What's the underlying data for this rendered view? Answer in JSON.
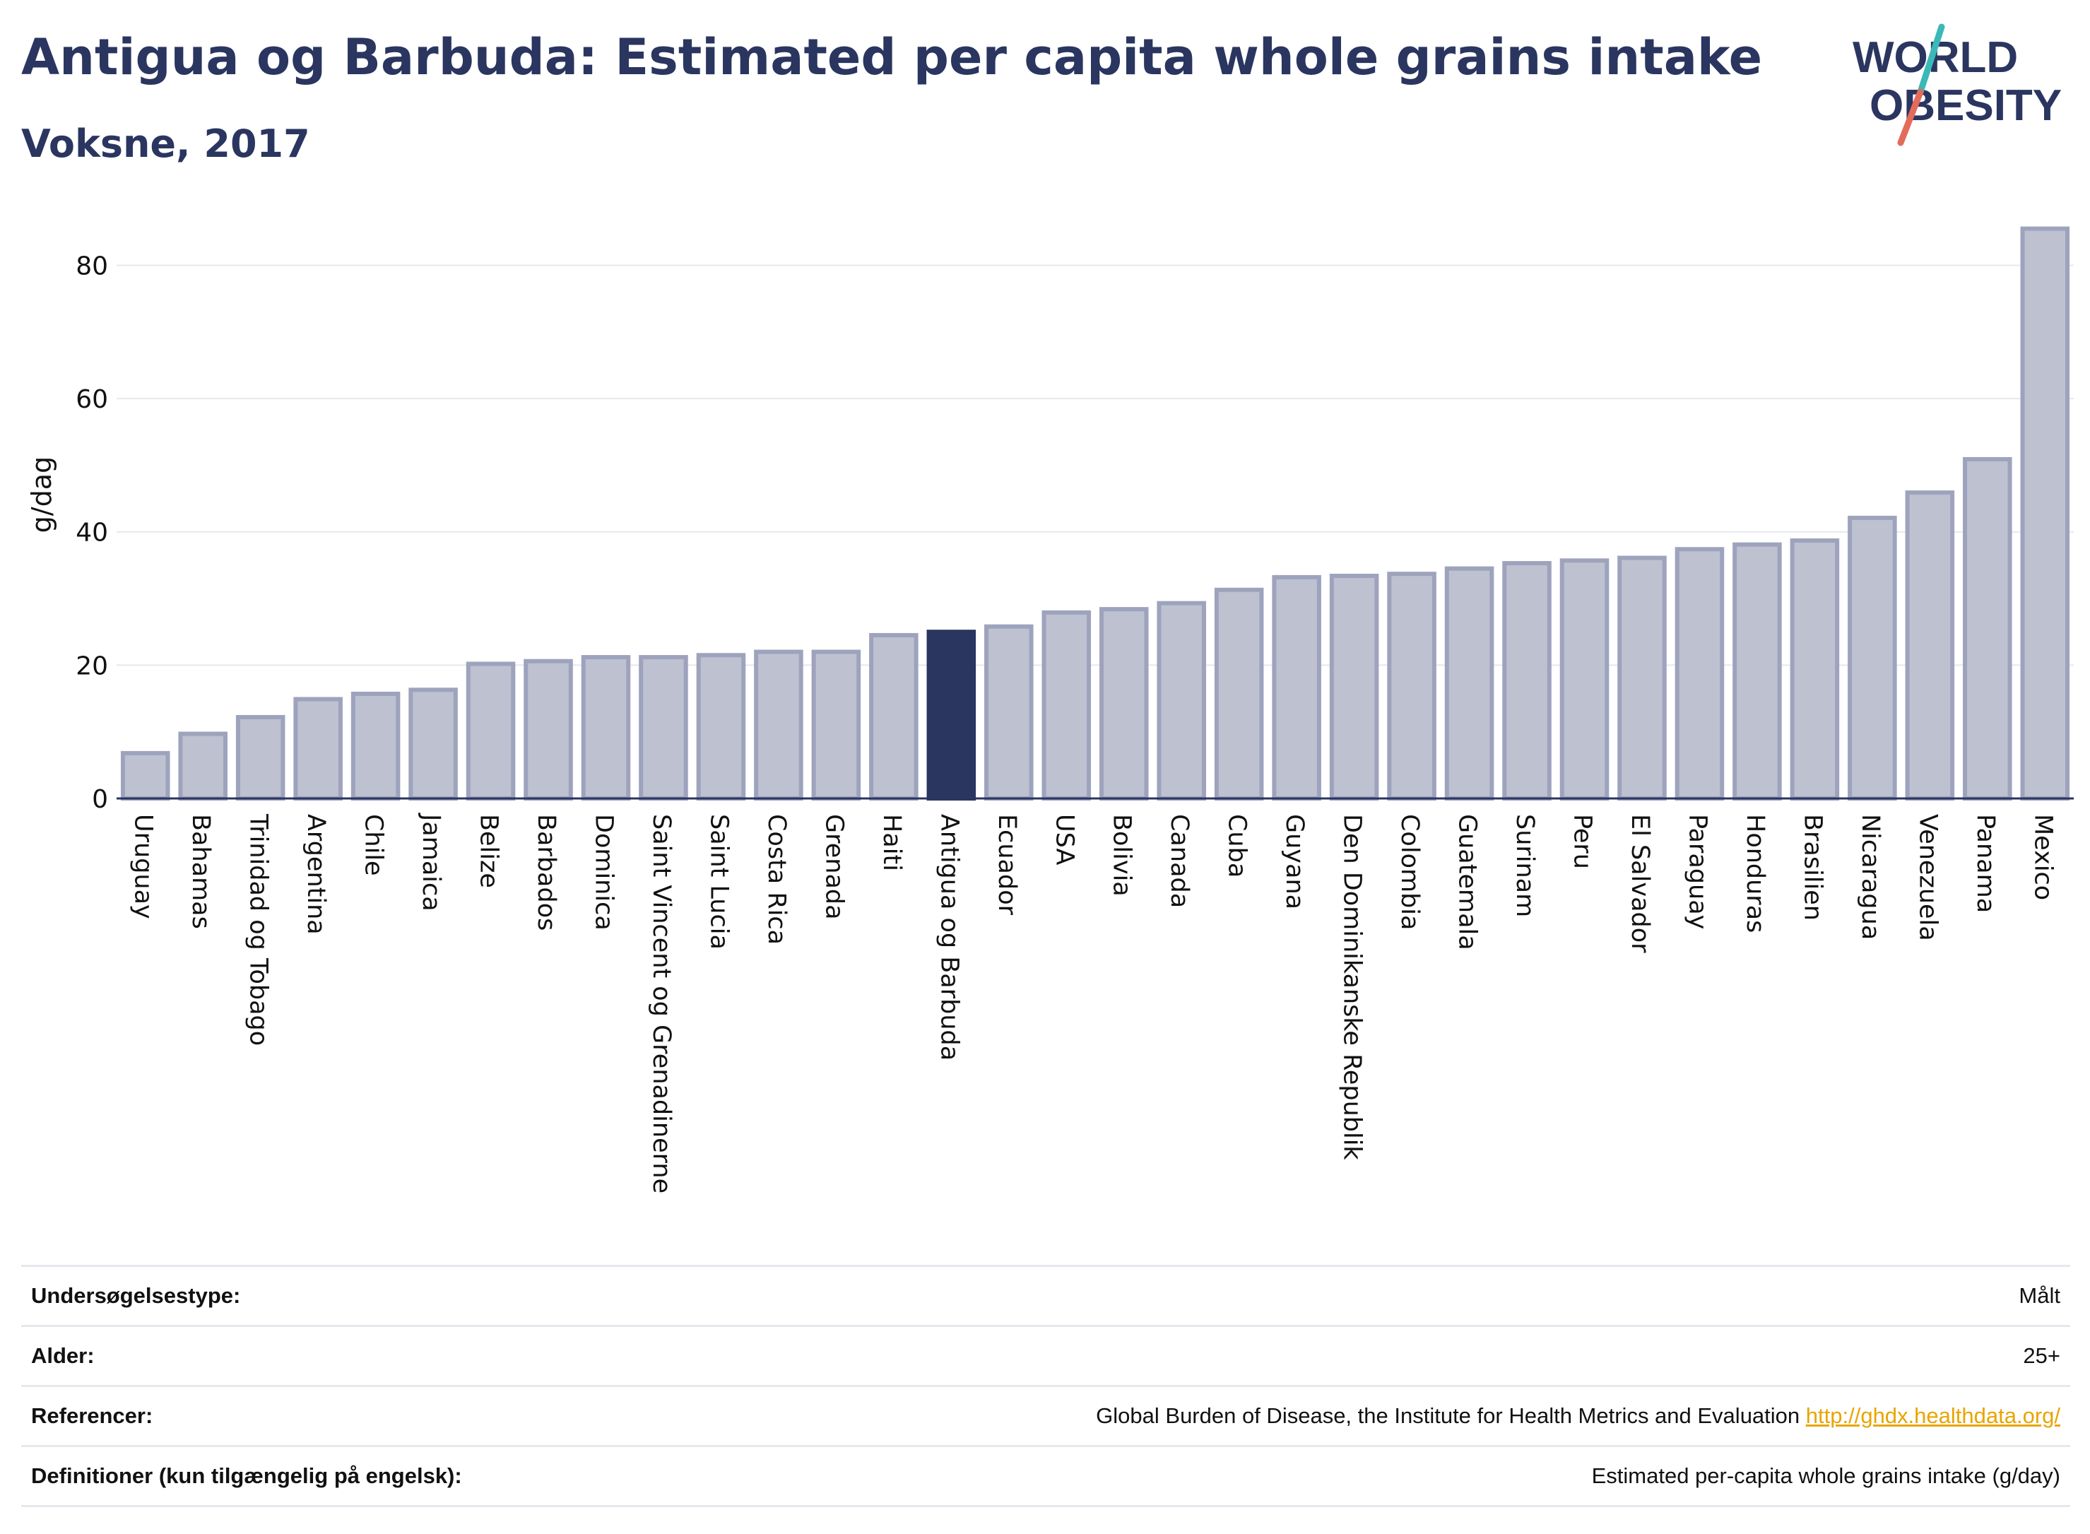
{
  "header": {
    "title": "Antigua og Barbuda: Estimated per capita whole grains intake",
    "subtitle": "Voksne, 2017"
  },
  "logo": {
    "line1": "WORLD",
    "line2": "OBESITY",
    "colors": {
      "text": "#2a3560",
      "slash_teal": "#3bb8b8",
      "slash_red": "#e36b5a"
    }
  },
  "colors": {
    "bar": "#bec1d0",
    "bar_border": "#9ea3bd",
    "highlight": "#2a3560",
    "grid": "#e6e8ee",
    "text": "#2a3560"
  },
  "chart_data": {
    "type": "bar",
    "ylabel": "g/dag",
    "ylim": [
      0,
      88
    ],
    "yticks": [
      0,
      20,
      40,
      60,
      80
    ],
    "grid": true,
    "highlight": "Antigua og Barbuda",
    "categories": [
      "Uruguay",
      "Bahamas",
      "Trinidad og Tobago",
      "Argentina",
      "Chile",
      "Jamaica",
      "Belize",
      "Barbados",
      "Dominica",
      "Saint Vincent og Grenadinerne",
      "Saint Lucia",
      "Costa Rica",
      "Grenada",
      "Haiti",
      "Antigua og Barbuda",
      "Ecuador",
      "USA",
      "Bolivia",
      "Canada",
      "Cuba",
      "Guyana",
      "Den Dominikanske Republik",
      "Colombia",
      "Guatemala",
      "Surinam",
      "Peru",
      "El Salvador",
      "Paraguay",
      "Honduras",
      "Brasilien",
      "Nicaragua",
      "Venezuela",
      "Panama",
      "Mexico"
    ],
    "values": [
      6.8,
      9.7,
      12.2,
      14.9,
      15.7,
      16.3,
      20.2,
      20.6,
      21.2,
      21.2,
      21.5,
      22.0,
      22.0,
      24.5,
      25.0,
      25.8,
      27.9,
      28.4,
      29.3,
      31.3,
      33.2,
      33.4,
      33.7,
      34.5,
      35.3,
      35.7,
      36.1,
      37.4,
      38.1,
      38.7,
      42.1,
      45.9,
      50.9,
      85.5
    ]
  },
  "meta": {
    "rows": [
      {
        "key": "Undersøgelsestype:",
        "value": "Målt"
      },
      {
        "key": "Alder:",
        "value": "25+"
      },
      {
        "key": "Referencer:",
        "value": "Global Burden of Disease, the Institute for Health Metrics and Evaluation",
        "link": "http://ghdx.healthdata.org/"
      },
      {
        "key": "Definitioner (kun tilgængelig på engelsk):",
        "value": "Estimated per-capita whole grains intake (g/day)"
      }
    ]
  }
}
